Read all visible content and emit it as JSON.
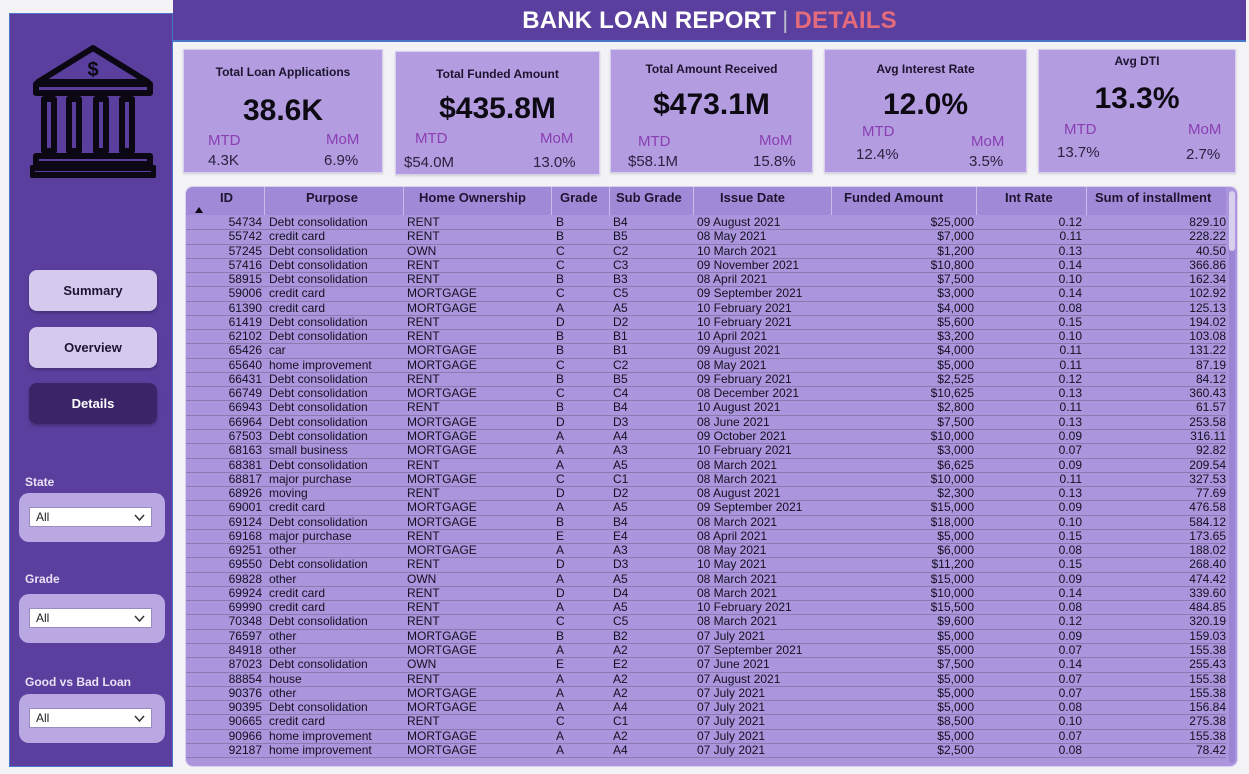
{
  "header": {
    "title_main": "BANK LOAN REPORT",
    "separator": "|",
    "title_sub": "DETAILS"
  },
  "sidebar": {
    "logo": "bank-building-icon",
    "nav": [
      {
        "label": "Summary"
      },
      {
        "label": "Overview"
      },
      {
        "label": "Details",
        "active": true
      }
    ],
    "filters": [
      {
        "label": "State",
        "value": "All"
      },
      {
        "label": "Grade",
        "value": "All"
      },
      {
        "label": "Good vs Bad Loan",
        "value": "All"
      }
    ]
  },
  "kpis": [
    {
      "title": "Total Loan Applications",
      "value": "38.6K",
      "mtd_label": "MTD",
      "mtd_value": "4.3K",
      "mom_label": "MoM",
      "mom_value": "6.9%"
    },
    {
      "title": "Total Funded Amount",
      "value": "$435.8M",
      "mtd_label": "MTD",
      "mtd_value": "$54.0M",
      "mom_label": "MoM",
      "mom_value": "13.0%"
    },
    {
      "title": "Total Amount Received",
      "value": "$473.1M",
      "mtd_label": "MTD",
      "mtd_value": "$58.1M",
      "mom_label": "MoM",
      "mom_value": "15.8%"
    },
    {
      "title": "Avg Interest Rate",
      "value": "12.0%",
      "mtd_label": "MTD",
      "mtd_value": "12.4%",
      "mom_label": "MoM",
      "mom_value": "3.5%"
    },
    {
      "title": "Avg DTI",
      "value": "13.3%",
      "mtd_label": "MTD",
      "mtd_value": "13.7%",
      "mom_label": "MoM",
      "mom_value": "2.7%"
    }
  ],
  "table": {
    "columns": [
      "ID",
      "Purpose",
      "Home Ownership",
      "Grade",
      "Sub Grade",
      "Issue Date",
      "Funded Amount",
      "Int Rate",
      "Sum of installment"
    ],
    "rows": [
      [
        "54734",
        "Debt consolidation",
        "RENT",
        "B",
        "B4",
        "09 August 2021",
        "$25,000",
        "0.12",
        "829.10"
      ],
      [
        "55742",
        "credit card",
        "RENT",
        "B",
        "B5",
        "08 May 2021",
        "$7,000",
        "0.11",
        "228.22"
      ],
      [
        "57245",
        "Debt consolidation",
        "OWN",
        "C",
        "C2",
        "10 March 2021",
        "$1,200",
        "0.13",
        "40.50"
      ],
      [
        "57416",
        "Debt consolidation",
        "RENT",
        "C",
        "C3",
        "09 November 2021",
        "$10,800",
        "0.14",
        "366.86"
      ],
      [
        "58915",
        "Debt consolidation",
        "RENT",
        "B",
        "B3",
        "08 April 2021",
        "$7,500",
        "0.10",
        "162.34"
      ],
      [
        "59006",
        "credit card",
        "MORTGAGE",
        "C",
        "C5",
        "09 September 2021",
        "$3,000",
        "0.14",
        "102.92"
      ],
      [
        "61390",
        "credit card",
        "MORTGAGE",
        "A",
        "A5",
        "10 February 2021",
        "$4,000",
        "0.08",
        "125.13"
      ],
      [
        "61419",
        "Debt consolidation",
        "RENT",
        "D",
        "D2",
        "10 February 2021",
        "$5,600",
        "0.15",
        "194.02"
      ],
      [
        "62102",
        "Debt consolidation",
        "RENT",
        "B",
        "B1",
        "10 April 2021",
        "$3,200",
        "0.10",
        "103.08"
      ],
      [
        "65426",
        "car",
        "MORTGAGE",
        "B",
        "B1",
        "09 August 2021",
        "$4,000",
        "0.11",
        "131.22"
      ],
      [
        "65640",
        "home improvement",
        "MORTGAGE",
        "C",
        "C2",
        "08 May 2021",
        "$5,000",
        "0.11",
        "87.19"
      ],
      [
        "66431",
        "Debt consolidation",
        "RENT",
        "B",
        "B5",
        "09 February 2021",
        "$2,525",
        "0.12",
        "84.12"
      ],
      [
        "66749",
        "Debt consolidation",
        "MORTGAGE",
        "C",
        "C4",
        "08 December 2021",
        "$10,625",
        "0.13",
        "360.43"
      ],
      [
        "66943",
        "Debt consolidation",
        "RENT",
        "B",
        "B4",
        "10 August 2021",
        "$2,800",
        "0.11",
        "61.57"
      ],
      [
        "66964",
        "Debt consolidation",
        "MORTGAGE",
        "D",
        "D3",
        "08 June 2021",
        "$7,500",
        "0.13",
        "253.58"
      ],
      [
        "67503",
        "Debt consolidation",
        "MORTGAGE",
        "A",
        "A4",
        "09 October 2021",
        "$10,000",
        "0.09",
        "316.11"
      ],
      [
        "68163",
        "small business",
        "MORTGAGE",
        "A",
        "A3",
        "10 February 2021",
        "$3,000",
        "0.07",
        "92.82"
      ],
      [
        "68381",
        "Debt consolidation",
        "RENT",
        "A",
        "A5",
        "08 March 2021",
        "$6,625",
        "0.09",
        "209.54"
      ],
      [
        "68817",
        "major purchase",
        "MORTGAGE",
        "C",
        "C1",
        "08 March 2021",
        "$10,000",
        "0.11",
        "327.53"
      ],
      [
        "68926",
        "moving",
        "RENT",
        "D",
        "D2",
        "08 August 2021",
        "$2,300",
        "0.13",
        "77.69"
      ],
      [
        "69001",
        "credit card",
        "MORTGAGE",
        "A",
        "A5",
        "09 September 2021",
        "$15,000",
        "0.09",
        "476.58"
      ],
      [
        "69124",
        "Debt consolidation",
        "MORTGAGE",
        "B",
        "B4",
        "08 March 2021",
        "$18,000",
        "0.10",
        "584.12"
      ],
      [
        "69168",
        "major purchase",
        "RENT",
        "E",
        "E4",
        "08 April 2021",
        "$5,000",
        "0.15",
        "173.65"
      ],
      [
        "69251",
        "other",
        "MORTGAGE",
        "A",
        "A3",
        "08 May 2021",
        "$6,000",
        "0.08",
        "188.02"
      ],
      [
        "69550",
        "Debt consolidation",
        "RENT",
        "D",
        "D3",
        "10 May 2021",
        "$11,200",
        "0.15",
        "268.40"
      ],
      [
        "69828",
        "other",
        "OWN",
        "A",
        "A5",
        "08 March 2021",
        "$15,000",
        "0.09",
        "474.42"
      ],
      [
        "69924",
        "credit card",
        "RENT",
        "D",
        "D4",
        "08 March 2021",
        "$10,000",
        "0.14",
        "339.60"
      ],
      [
        "69990",
        "credit card",
        "RENT",
        "A",
        "A5",
        "10 February 2021",
        "$15,500",
        "0.08",
        "484.85"
      ],
      [
        "70348",
        "Debt consolidation",
        "RENT",
        "C",
        "C5",
        "08 March 2021",
        "$9,600",
        "0.12",
        "320.19"
      ],
      [
        "76597",
        "other",
        "MORTGAGE",
        "B",
        "B2",
        "07 July 2021",
        "$5,000",
        "0.09",
        "159.03"
      ],
      [
        "84918",
        "other",
        "MORTGAGE",
        "A",
        "A2",
        "07 September 2021",
        "$5,000",
        "0.07",
        "155.38"
      ],
      [
        "87023",
        "Debt consolidation",
        "OWN",
        "E",
        "E2",
        "07 June 2021",
        "$7,500",
        "0.14",
        "255.43"
      ],
      [
        "88854",
        "house",
        "RENT",
        "A",
        "A2",
        "07 August 2021",
        "$5,000",
        "0.07",
        "155.38"
      ],
      [
        "90376",
        "other",
        "MORTGAGE",
        "A",
        "A2",
        "07 July 2021",
        "$5,000",
        "0.07",
        "155.38"
      ],
      [
        "90395",
        "Debt consolidation",
        "MORTGAGE",
        "A",
        "A4",
        "07 July 2021",
        "$5,000",
        "0.08",
        "156.84"
      ],
      [
        "90665",
        "credit card",
        "RENT",
        "C",
        "C1",
        "07 July 2021",
        "$8,500",
        "0.10",
        "275.38"
      ],
      [
        "90966",
        "home improvement",
        "MORTGAGE",
        "A",
        "A2",
        "07 July 2021",
        "$5,000",
        "0.07",
        "155.38"
      ],
      [
        "92187",
        "home improvement",
        "MORTGAGE",
        "A",
        "A4",
        "07 July 2021",
        "$2,500",
        "0.08",
        "78.42"
      ]
    ]
  },
  "colors": {
    "sidebar": "#5b3f9e",
    "accent_red": "#e36b7b",
    "card": "#b39ce0",
    "active_nav": "#3b2568"
  }
}
